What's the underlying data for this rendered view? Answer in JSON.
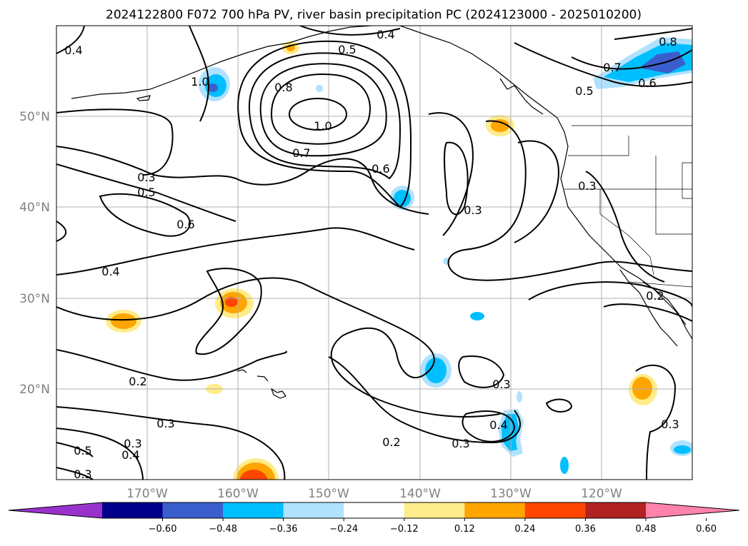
{
  "title": "2024122800 F072 700 hPa PV, river basin precipitation PC (2024123000 - 2025010200)",
  "map": {
    "lon_range": [
      -180,
      -110
    ],
    "lat_range": [
      10,
      60
    ],
    "gridlines": true,
    "lon_ticks": [
      "170°W",
      "160°W",
      "150°W",
      "140°W",
      "130°W",
      "120°W"
    ],
    "lat_ticks": [
      "50°N",
      "40°N",
      "30°N",
      "20°N"
    ],
    "contour_labels": [
      "0.4",
      "0.5",
      "0.4",
      "0.8",
      "0.7",
      "0.5",
      "0.6",
      "0.8",
      "1.0",
      "0.7",
      "1.0",
      "0.6",
      "0.3",
      "0.5",
      "0.6",
      "0.3",
      "0.3",
      "0.4",
      "0.2",
      "0.2",
      "0.3",
      "0.3",
      "0.4",
      "0.3",
      "0.3",
      "0.2",
      "0.3",
      "0.5",
      "0.4",
      "0.3"
    ]
  },
  "colorbar": {
    "ticks": [
      "−0.60",
      "−0.48",
      "−0.36",
      "−0.24",
      "−0.12",
      "0.12",
      "0.24",
      "0.36",
      "0.48",
      "0.60"
    ],
    "colors": [
      "#9932cc",
      "#00008b",
      "#3a5fcd",
      "#00bfff",
      "#b0e2ff",
      "#ffffff",
      "#ffec8b",
      "#ffa500",
      "#ff4500",
      "#b22222",
      "#ff82ab"
    ]
  }
}
